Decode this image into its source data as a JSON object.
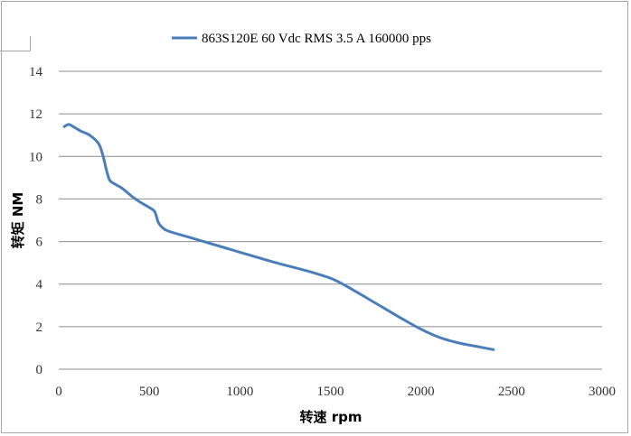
{
  "chart_data": {
    "type": "line",
    "title": "",
    "xlabel": "转速 rpm",
    "ylabel": "转矩 NM",
    "xlim": [
      0,
      3000
    ],
    "ylim": [
      0,
      14
    ],
    "x_ticks": [
      "0",
      "500",
      "1000",
      "1500",
      "2000",
      "2500",
      "3000"
    ],
    "y_ticks": [
      "0",
      "2",
      "4",
      "6",
      "8",
      "10",
      "12",
      "14"
    ],
    "grid": "horizontal",
    "legend_position": "top",
    "series": [
      {
        "name": "863S120E 60 Vdc  RMS 3.5 A  160000 pps",
        "color": "#4a7ebb",
        "x": [
          30,
          55,
          80,
          120,
          170,
          220,
          245,
          265,
          280,
          300,
          350,
          400,
          450,
          500,
          530,
          550,
          580,
          620,
          700,
          800,
          900,
          1000,
          1100,
          1200,
          1300,
          1400,
          1450,
          1500,
          1550,
          1600,
          1700,
          1800,
          1900,
          2000,
          2100,
          2200,
          2300,
          2400
        ],
        "y": [
          11.4,
          11.5,
          11.4,
          11.2,
          11.0,
          10.6,
          10.0,
          9.3,
          8.9,
          8.75,
          8.5,
          8.15,
          7.85,
          7.6,
          7.4,
          6.9,
          6.6,
          6.45,
          6.25,
          6.0,
          5.75,
          5.5,
          5.25,
          5.0,
          4.78,
          4.55,
          4.42,
          4.28,
          4.08,
          3.85,
          3.35,
          2.85,
          2.35,
          1.88,
          1.5,
          1.25,
          1.08,
          0.92
        ]
      }
    ]
  }
}
